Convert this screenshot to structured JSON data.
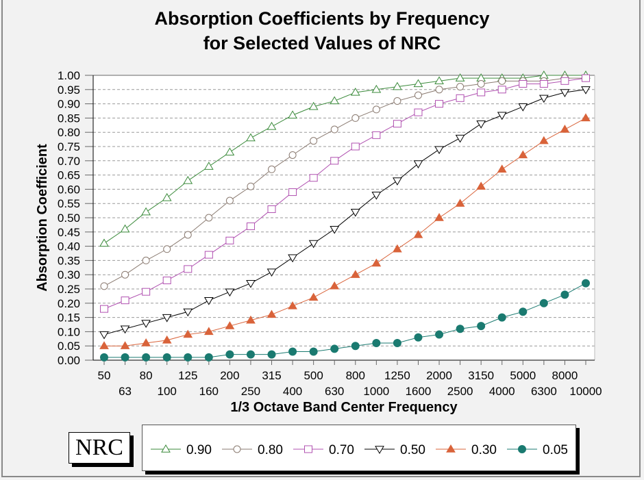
{
  "chart_data": {
    "type": "line",
    "title": [
      "Absorption Coefficients by Frequency",
      "for Selected Values of NRC"
    ],
    "xlabel": "1/3 Octave Band Center Frequency",
    "ylabel": "Absorption Coefficient",
    "ylim": [
      0,
      1.0
    ],
    "yticks": [
      "0.00",
      "0.05",
      "0.10",
      "0.15",
      "0.20",
      "0.25",
      "0.30",
      "0.35",
      "0.40",
      "0.45",
      "0.50",
      "0.55",
      "0.60",
      "0.65",
      "0.70",
      "0.75",
      "0.80",
      "0.85",
      "0.90",
      "0.95",
      "1.00"
    ],
    "grid": "horizontal dashed",
    "categories": [
      "50",
      "63",
      "80",
      "100",
      "125",
      "160",
      "200",
      "250",
      "315",
      "400",
      "500",
      "630",
      "800",
      "1000",
      "1250",
      "1600",
      "2000",
      "2500",
      "3150",
      "4000",
      "5000",
      "6300",
      "8000",
      "10000"
    ],
    "legend_title": "NRC",
    "legend_placement": "bottom",
    "series": [
      {
        "name": "0.90",
        "marker": "triangle-up-open",
        "color": "#3a8a3a",
        "values": [
          0.41,
          0.46,
          0.52,
          0.57,
          0.63,
          0.68,
          0.73,
          0.78,
          0.82,
          0.86,
          0.89,
          0.91,
          0.94,
          0.95,
          0.96,
          0.97,
          0.98,
          0.99,
          0.99,
          0.99,
          0.99,
          1.0,
          1.0,
          1.0
        ]
      },
      {
        "name": "0.80",
        "marker": "circle-open",
        "color": "#8a7a70",
        "values": [
          0.26,
          0.3,
          0.35,
          0.39,
          0.44,
          0.5,
          0.56,
          0.61,
          0.67,
          0.72,
          0.77,
          0.81,
          0.85,
          0.88,
          0.91,
          0.93,
          0.95,
          0.96,
          0.97,
          0.98,
          0.98,
          0.98,
          0.99,
          0.99
        ]
      },
      {
        "name": "0.70",
        "marker": "square-open",
        "color": "#b050b0",
        "values": [
          0.18,
          0.21,
          0.24,
          0.28,
          0.32,
          0.37,
          0.42,
          0.47,
          0.53,
          0.59,
          0.64,
          0.7,
          0.75,
          0.79,
          0.83,
          0.87,
          0.9,
          0.92,
          0.94,
          0.95,
          0.97,
          0.97,
          0.98,
          0.99
        ]
      },
      {
        "name": "0.50",
        "marker": "triangle-down-open",
        "color": "#000000",
        "values": [
          0.09,
          0.11,
          0.13,
          0.15,
          0.17,
          0.21,
          0.24,
          0.27,
          0.31,
          0.36,
          0.41,
          0.46,
          0.52,
          0.58,
          0.63,
          0.69,
          0.74,
          0.78,
          0.83,
          0.86,
          0.89,
          0.92,
          0.94,
          0.95
        ]
      },
      {
        "name": "0.30",
        "marker": "triangle-up-filled",
        "color": "#d9633a",
        "values": [
          0.05,
          0.05,
          0.06,
          0.07,
          0.09,
          0.1,
          0.12,
          0.14,
          0.16,
          0.19,
          0.22,
          0.26,
          0.3,
          0.34,
          0.39,
          0.44,
          0.5,
          0.55,
          0.61,
          0.67,
          0.72,
          0.77,
          0.81,
          0.85
        ]
      },
      {
        "name": "0.05",
        "marker": "circle-filled",
        "color": "#1a7a70",
        "values": [
          0.01,
          0.01,
          0.01,
          0.01,
          0.01,
          0.01,
          0.02,
          0.02,
          0.02,
          0.03,
          0.03,
          0.04,
          0.05,
          0.06,
          0.06,
          0.08,
          0.09,
          0.11,
          0.12,
          0.15,
          0.17,
          0.2,
          0.23,
          0.27
        ]
      }
    ]
  }
}
